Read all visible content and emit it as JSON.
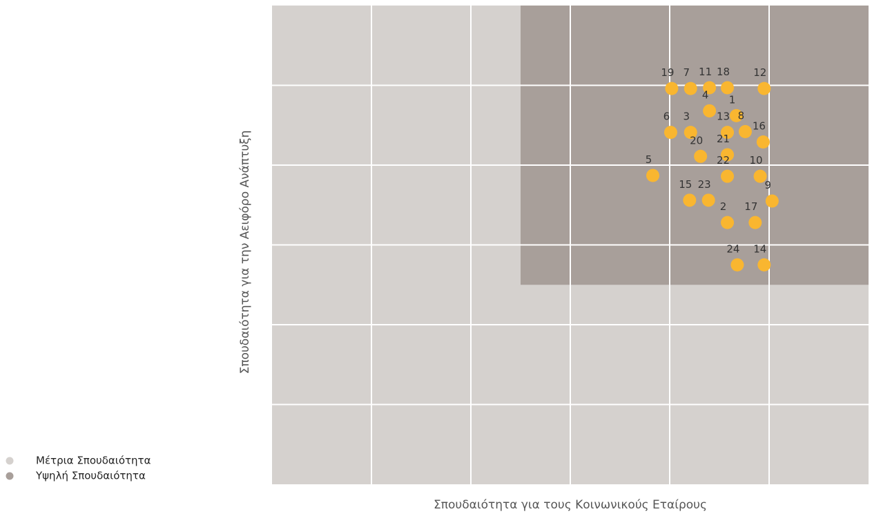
{
  "chart_data": {
    "type": "scatter",
    "xlabel": "Σπουδαιότητα για τους Κοινωνικούς Εταίρους",
    "ylabel": "Σπουδαιότητα για την Αειφόρο Ανάπτυξη",
    "xlim": [
      0,
      6
    ],
    "ylim": [
      0,
      6
    ],
    "xticks": [
      1,
      2,
      3,
      4,
      5
    ],
    "yticks": [
      1,
      2,
      3,
      4,
      5
    ],
    "grid": true,
    "regions": [
      {
        "name": "Μέτρια Σπουδαιότητα",
        "color": "#d5d1ce",
        "x": [
          0,
          6
        ],
        "y": [
          0,
          6
        ]
      },
      {
        "name": "Υψηλή Σπουδαιότητα",
        "color": "#a89f9a",
        "x": [
          2.5,
          6
        ],
        "y": [
          2.5,
          6
        ]
      }
    ],
    "color": "#f9b630",
    "labels": [
      "19",
      "7",
      "11",
      "18",
      "12",
      "4",
      "1",
      "6",
      "3",
      "13",
      "8",
      "16",
      "20",
      "21",
      "5",
      "22",
      "10",
      "15",
      "23",
      "9",
      "2",
      "17",
      "24",
      "14"
    ],
    "x": [
      4.02,
      4.21,
      4.4,
      4.58,
      4.95,
      4.4,
      4.67,
      4.01,
      4.21,
      4.58,
      4.76,
      4.94,
      4.31,
      4.58,
      3.83,
      4.58,
      4.91,
      4.2,
      4.39,
      5.03,
      4.58,
      4.86,
      4.68,
      4.95
    ],
    "y": [
      4.96,
      4.96,
      4.97,
      4.97,
      4.96,
      4.68,
      4.62,
      4.41,
      4.41,
      4.41,
      4.42,
      4.29,
      4.11,
      4.13,
      3.87,
      3.86,
      3.86,
      3.56,
      3.56,
      3.55,
      3.28,
      3.28,
      2.75,
      2.75
    ]
  }
}
